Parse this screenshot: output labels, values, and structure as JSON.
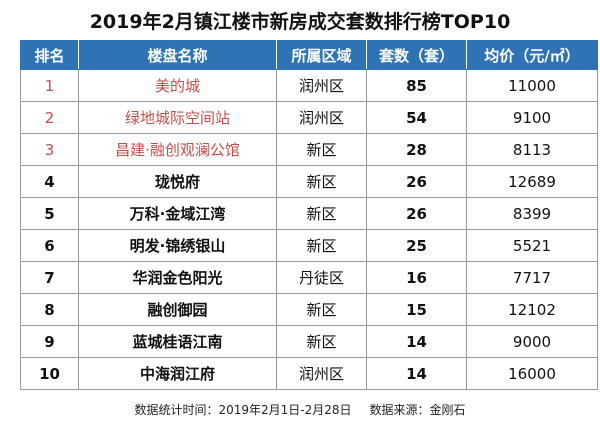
{
  "title": "2019年2月镇江楼市新房成交套数排行榜TOP10",
  "headers": {
    "rank": "排名",
    "name": "楼盘名称",
    "district": "所属区域",
    "count": "套数（套）",
    "price": "均价（元/㎡）"
  },
  "rows": [
    {
      "rank": "1",
      "name": "美的城",
      "district": "润州区",
      "count": "85",
      "price": "11000"
    },
    {
      "rank": "2",
      "name": "绿地城际空间站",
      "district": "润州区",
      "count": "54",
      "price": "9100"
    },
    {
      "rank": "3",
      "name": "昌建·融创观澜公馆",
      "district": "新区",
      "count": "28",
      "price": "8113"
    },
    {
      "rank": "4",
      "name": "珑悦府",
      "district": "新区",
      "count": "26",
      "price": "12689"
    },
    {
      "rank": "5",
      "name": "万科·金域江湾",
      "district": "新区",
      "count": "26",
      "price": "8399"
    },
    {
      "rank": "6",
      "name": "明发·锦绣银山",
      "district": "新区",
      "count": "25",
      "price": "5521"
    },
    {
      "rank": "7",
      "name": "华润金色阳光",
      "district": "丹徒区",
      "count": "16",
      "price": "7717"
    },
    {
      "rank": "8",
      "name": "融创御园",
      "district": "新区",
      "count": "15",
      "price": "12102"
    },
    {
      "rank": "9",
      "name": "蓝城桂语江南",
      "district": "新区",
      "count": "14",
      "price": "9000"
    },
    {
      "rank": "10",
      "name": "中海润江府",
      "district": "润州区",
      "count": "14",
      "price": "16000"
    }
  ],
  "footer": {
    "period": "数据统计时间：2019年2月1日-2月28日",
    "source": "数据来源：金刚石"
  },
  "colors": {
    "header_bg": "#2e74b5",
    "top3_text": "#c0504d"
  }
}
